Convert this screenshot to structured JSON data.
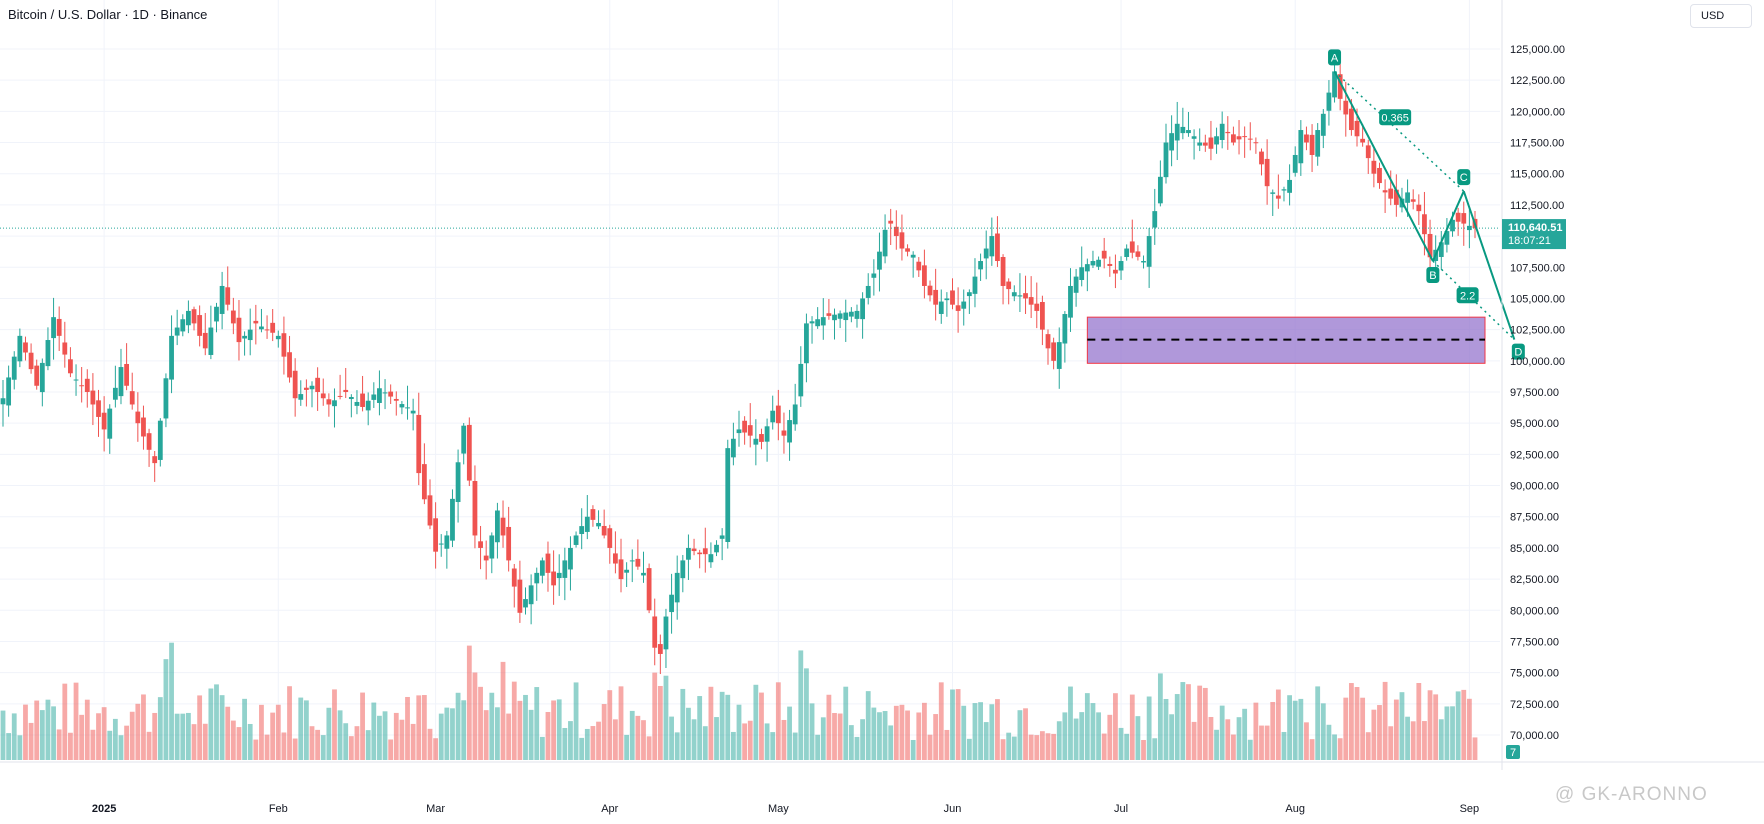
{
  "header": {
    "symbol_title": "Bitcoin / U.S. Dollar · 1D · Binance",
    "currency": "USD"
  },
  "price_scale": {
    "ticks": [
      "125,000.00",
      "122,500.00",
      "120,000.00",
      "117,500.00",
      "115,000.00",
      "112,500.00",
      "110,000.00",
      "107,500.00",
      "105,000.00",
      "102,500.00",
      "100,000.00",
      "97,500.00",
      "95,000.00",
      "92,500.00",
      "90,000.00",
      "87,500.00",
      "85,000.00",
      "82,500.00",
      "80,000.00",
      "77,500.00",
      "75,000.00",
      "72,500.00",
      "70,000.00"
    ],
    "current_price": "110,640.51",
    "countdown": "18:07:21",
    "volume_badge": "7"
  },
  "time_scale": {
    "ticks": [
      "2025",
      "Feb",
      "Mar",
      "Apr",
      "May",
      "Jun",
      "Jul",
      "Aug",
      "Sep"
    ]
  },
  "watermark": "@ GK-ARONNO",
  "colors": {
    "up": "#26a69a",
    "down": "#ef5350",
    "zone_fill": "#9575cd",
    "zone_border": "#f23645",
    "pattern": "#089981",
    "price_line": "#26a69a"
  },
  "chart_data": {
    "type": "candlestick",
    "title": "Bitcoin / U.S. Dollar · 1D · Binance",
    "ylim": [
      68000,
      127000
    ],
    "x_ticks": [
      "2025",
      "Feb",
      "Mar",
      "Apr",
      "May",
      "Jun",
      "Jul",
      "Aug",
      "Sep"
    ],
    "tick_day_index": [
      18,
      49,
      77,
      108,
      138,
      169,
      199,
      230,
      261
    ],
    "days": 269,
    "keypoints": [
      [
        0,
        97000
      ],
      [
        3,
        102000
      ],
      [
        6,
        98000
      ],
      [
        9,
        103500
      ],
      [
        12,
        99000
      ],
      [
        15,
        97500
      ],
      [
        18,
        94500
      ],
      [
        21,
        99500
      ],
      [
        24,
        95000
      ],
      [
        27,
        91800
      ],
      [
        30,
        102000
      ],
      [
        33,
        104000
      ],
      [
        36,
        101000
      ],
      [
        39,
        106000
      ],
      [
        42,
        101500
      ],
      [
        45,
        103000
      ],
      [
        49,
        102000
      ],
      [
        52,
        97000
      ],
      [
        55,
        98000
      ],
      [
        58,
        96500
      ],
      [
        61,
        97500
      ],
      [
        64,
        96300
      ],
      [
        67,
        97800
      ],
      [
        70,
        96800
      ],
      [
        73,
        96000
      ],
      [
        74,
        91000
      ],
      [
        77,
        84700
      ],
      [
        79,
        86000
      ],
      [
        82,
        94800
      ],
      [
        84,
        86000
      ],
      [
        86,
        84000
      ],
      [
        88,
        88000
      ],
      [
        90,
        84000
      ],
      [
        92,
        79800
      ],
      [
        94,
        82000
      ],
      [
        96,
        84000
      ],
      [
        98,
        82000
      ],
      [
        100,
        84000
      ],
      [
        102,
        86000
      ],
      [
        104,
        87500
      ],
      [
        106,
        87000
      ],
      [
        108,
        85000
      ],
      [
        110,
        82500
      ],
      [
        112,
        84000
      ],
      [
        114,
        83000
      ],
      [
        116,
        77000
      ],
      [
        117,
        76500
      ],
      [
        118,
        79500
      ],
      [
        120,
        83000
      ],
      [
        122,
        85000
      ],
      [
        124,
        84500
      ],
      [
        126,
        84500
      ],
      [
        128,
        86000
      ],
      [
        129,
        93000
      ],
      [
        131,
        94500
      ],
      [
        133,
        94000
      ],
      [
        135,
        93500
      ],
      [
        137,
        96000
      ],
      [
        139,
        94000
      ],
      [
        141,
        96500
      ],
      [
        143,
        103000
      ],
      [
        146,
        103500
      ],
      [
        149,
        103800
      ],
      [
        152,
        104000
      ],
      [
        155,
        107000
      ],
      [
        157,
        110500
      ],
      [
        158,
        111000
      ],
      [
        160,
        109000
      ],
      [
        162,
        108500
      ],
      [
        164,
        106000
      ],
      [
        166,
        104500
      ],
      [
        168,
        105000
      ],
      [
        170,
        104000
      ],
      [
        172,
        105500
      ],
      [
        174,
        108000
      ],
      [
        176,
        110000
      ],
      [
        178,
        106000
      ],
      [
        180,
        105500
      ],
      [
        182,
        105000
      ],
      [
        184,
        104000
      ],
      [
        186,
        101000
      ],
      [
        187,
        100000
      ],
      [
        188,
        101500
      ],
      [
        190,
        106000
      ],
      [
        192,
        107500
      ],
      [
        194,
        108000
      ],
      [
        196,
        108200
      ],
      [
        198,
        107000
      ],
      [
        200,
        109000
      ],
      [
        203,
        108000
      ],
      [
        204,
        110000
      ],
      [
        205,
        112000
      ],
      [
        207,
        117500
      ],
      [
        209,
        119000
      ],
      [
        211,
        118500
      ],
      [
        213,
        117500
      ],
      [
        215,
        117000
      ],
      [
        217,
        119000
      ],
      [
        219,
        117500
      ],
      [
        221,
        118000
      ],
      [
        223,
        117500
      ],
      [
        225,
        114000
      ],
      [
        227,
        113000
      ],
      [
        229,
        114500
      ],
      [
        231,
        118500
      ],
      [
        233,
        116500
      ],
      [
        234,
        118500
      ],
      [
        235,
        119800
      ],
      [
        237,
        123200
      ],
      [
        238,
        121000
      ],
      [
        240,
        118500
      ],
      [
        242,
        117500
      ],
      [
        244,
        115000
      ],
      [
        246,
        113500
      ],
      [
        248,
        112500
      ],
      [
        250,
        113500
      ],
      [
        252,
        112000
      ],
      [
        254,
        108300
      ],
      [
        256,
        109500
      ],
      [
        258,
        111300
      ],
      [
        260,
        111000
      ],
      [
        262,
        110640
      ]
    ],
    "harmonic_pattern": {
      "points": [
        {
          "label": "A",
          "value": 123200
        },
        {
          "label": "B",
          "value": 108000
        },
        {
          "label": "C",
          "value": 113600
        },
        {
          "label": "D",
          "value": 101700
        }
      ],
      "ratios": [
        "0.365",
        "2.2"
      ]
    },
    "zone": {
      "top": 103500,
      "bottom": 99800,
      "midline": 101700
    }
  }
}
